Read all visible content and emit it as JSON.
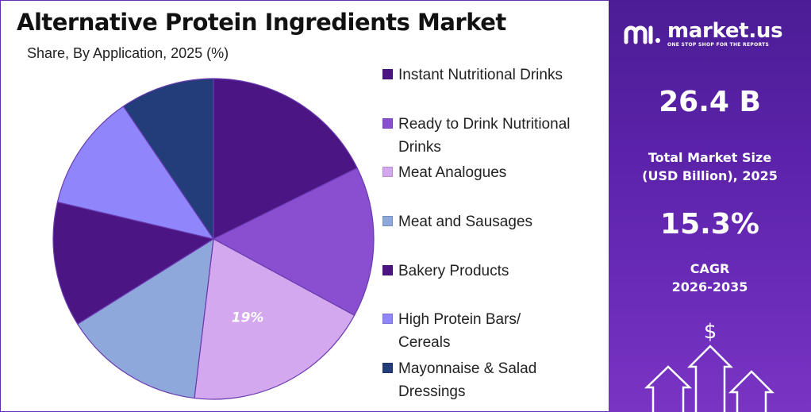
{
  "header": {
    "title": "Alternative Protein Ingredients Market",
    "subtitle": "Share, By Application, 2025 (%)"
  },
  "chart_data": {
    "type": "pie",
    "title": "Alternative Protein Ingredients Market",
    "subtitle": "Share, By Application, 2025 (%)",
    "start_angle_deg": 0,
    "direction": "clockwise",
    "slices": [
      {
        "label": "Instant Nutritional Drinks",
        "value": 17.7,
        "color": "#4b1583"
      },
      {
        "label": "Ready to Drink Nutritional Drinks",
        "value": 15.2,
        "color": "#8a4fd0"
      },
      {
        "label": "Meat Analogues",
        "value": 19,
        "color": "#d4a8ee",
        "data_label": "19%"
      },
      {
        "label": "Meat and Sausages",
        "value": 14.2,
        "color": "#8fa8dc"
      },
      {
        "label": "Bakery Products",
        "value": 12.6,
        "color": "#4b1583"
      },
      {
        "label": "High Protein Bars/ Cereals",
        "value": 11.8,
        "color": "#8f86fb"
      },
      {
        "label": "Mayonnaise & Salad Dressings",
        "value": 9.5,
        "color": "#233d7a"
      }
    ]
  },
  "legend": {
    "items": [
      {
        "line1": "Instant Nutritional Drinks",
        "line2": "",
        "color": "#4b1583"
      },
      {
        "line1": "Ready to Drink Nutritional",
        "line2": "Drinks",
        "color": "#8a4fd0"
      },
      {
        "line1": "Meat Analogues",
        "line2": "",
        "color": "#d4a8ee"
      },
      {
        "line1": "Meat and Sausages",
        "line2": "",
        "color": "#8fa8dc"
      },
      {
        "line1": "Bakery Products",
        "line2": "",
        "color": "#4b1583"
      },
      {
        "line1": "High Protein Bars/",
        "line2": "Cereals",
        "color": "#8f86fb"
      },
      {
        "line1": "Mayonnaise & Salad",
        "line2": "Dressings",
        "color": "#233d7a"
      }
    ]
  },
  "brand": {
    "name": "market.us",
    "tagline": "ONE STOP SHOP FOR THE REPORTS"
  },
  "stats": {
    "market_size_value": "26.4 B",
    "market_size_label_1": "Total Market Size",
    "market_size_label_2": "(USD Billion), 2025",
    "cagr_value": "15.3%",
    "cagr_label_1": "CAGR",
    "cagr_label_2": "2026-2035"
  },
  "icons": {
    "arrows": "growth-arrows-icon",
    "dollar": "dollar-icon",
    "logo": "market-us-logo-icon"
  },
  "colors": {
    "panel_top": "#4b1d95",
    "panel_bottom": "#7a34c4",
    "border": "#6a2bb3"
  }
}
